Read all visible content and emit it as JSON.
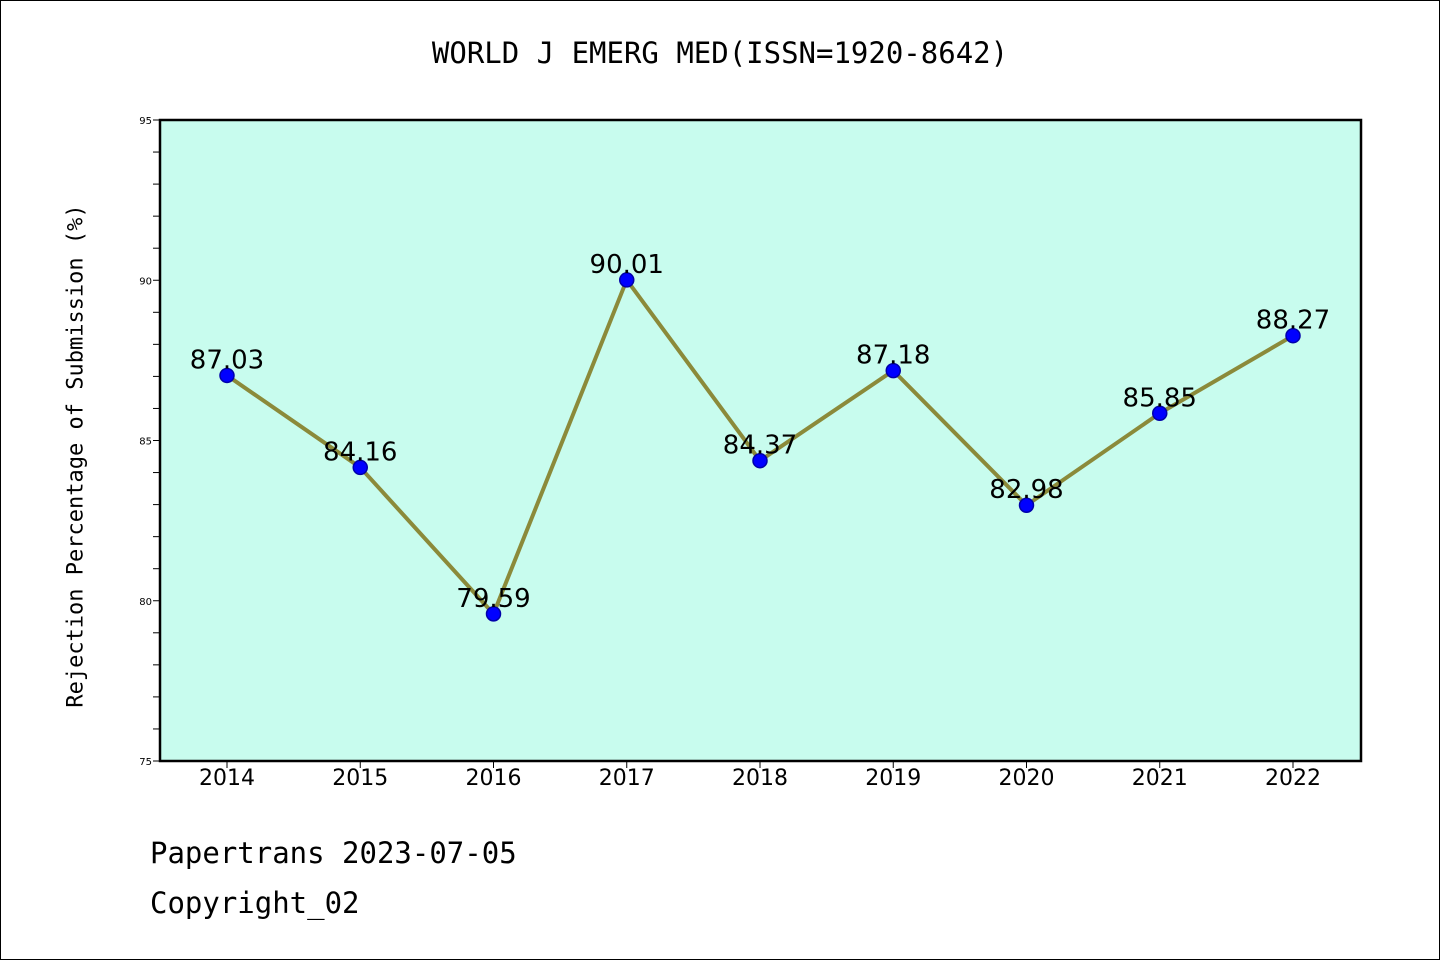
{
  "footer": {
    "line1": "Papertrans 2023-07-05",
    "line2": "Copyright_02"
  },
  "chart_data": {
    "type": "line",
    "title": "WORLD J EMERG MED(ISSN=1920-8642)",
    "xlabel": "",
    "ylabel": "Rejection Percentage of Submission (%)",
    "categories": [
      "2014",
      "2015",
      "2016",
      "2017",
      "2018",
      "2019",
      "2020",
      "2021",
      "2022"
    ],
    "series": [
      {
        "values": [
          87.03,
          84.16,
          79.59,
          90.01,
          84.37,
          87.18,
          82.98,
          85.85,
          88.27
        ],
        "labels": [
          "87.03",
          "84.16",
          "79.59",
          "90.01",
          "84.37",
          "87.18",
          "82.98",
          "85.85",
          "88.27"
        ]
      }
    ],
    "ylim": [
      75,
      95
    ],
    "y_major_ticks": [
      "75",
      "80",
      "85",
      "90",
      "95"
    ],
    "y_minor_step": 1,
    "grid": false,
    "legend": "none",
    "colors": {
      "plot_background": "#c8fcee",
      "line": "#8b8a3a",
      "marker": "#0000ff",
      "marker_edge": "#0000aa",
      "axes": "#000000"
    }
  }
}
